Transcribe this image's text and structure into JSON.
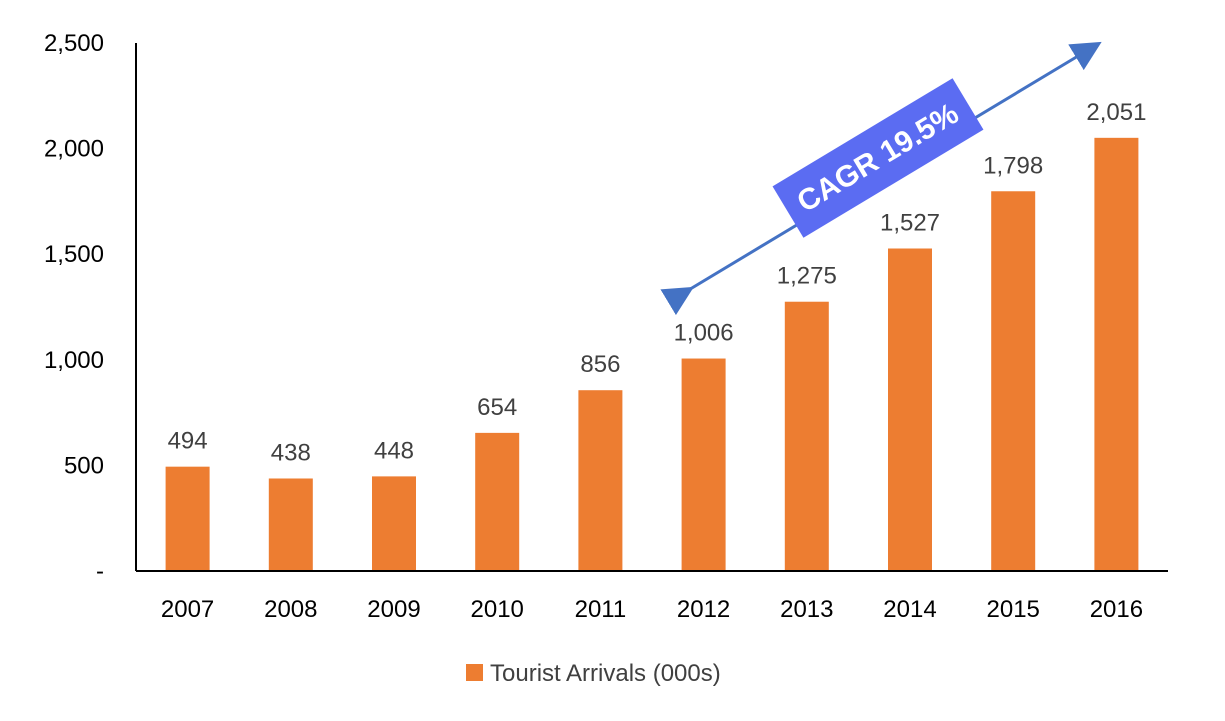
{
  "chart_data": {
    "type": "bar",
    "categories": [
      "2007",
      "2008",
      "2009",
      "2010",
      "2011",
      "2012",
      "2013",
      "2014",
      "2015",
      "2016"
    ],
    "series": [
      {
        "name": "Tourist Arrivals (000s)",
        "values": [
          494,
          438,
          448,
          654,
          856,
          1006,
          1275,
          1527,
          1798,
          2051
        ],
        "data_labels": [
          "494",
          "438",
          "448",
          "654",
          "856",
          "1,006",
          "1,275",
          "1,527",
          "1,798",
          "2,051"
        ],
        "color": "#ED7D31"
      }
    ],
    "ylim": [
      0,
      2500
    ],
    "yticks": [
      0,
      500,
      1000,
      1500,
      2000,
      2500
    ],
    "ytick_labels": [
      "-",
      "500",
      "1,000",
      "1,500",
      "2,000",
      "2,500"
    ],
    "grid": false,
    "legend": "bottom-center",
    "annotation": {
      "text": "CAGR 19.5%",
      "from_category": "2012",
      "to_category": "2016",
      "color": "#5B6CF2",
      "arrow_color": "#4472C4"
    }
  }
}
